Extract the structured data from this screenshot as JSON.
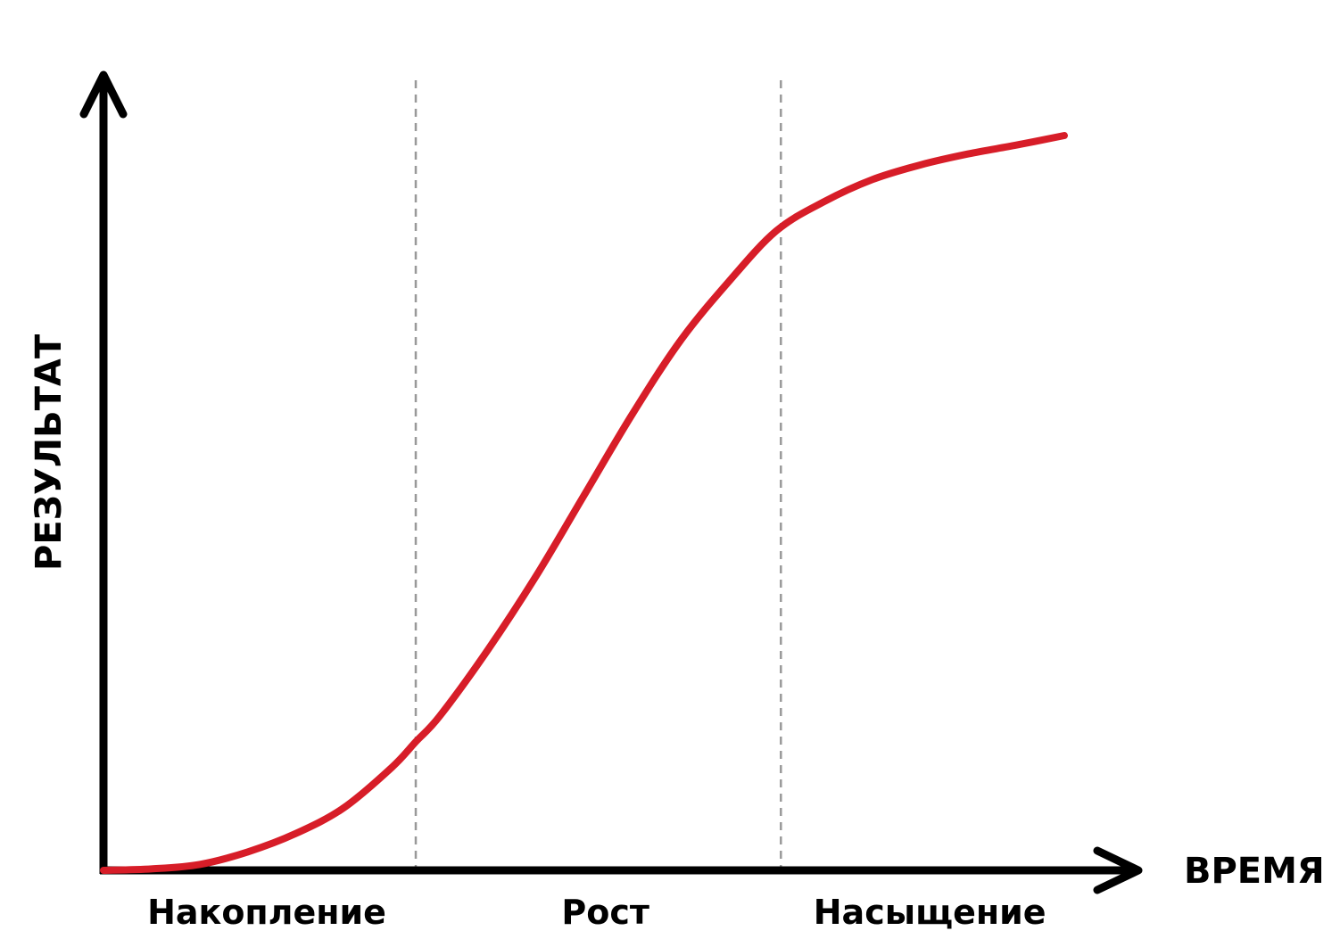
{
  "chart_data": {
    "type": "line",
    "title": "",
    "xlabel": "ВРЕМЯ",
    "ylabel": "РЕЗУЛЬТАТ",
    "grid": false,
    "legend": "none",
    "phases": [
      {
        "name": "Накопление",
        "x_start": 0,
        "x_end": 0.325
      },
      {
        "name": "Рост",
        "x_start": 0.325,
        "x_end": 0.705
      },
      {
        "name": "Насыщение",
        "x_start": 0.705,
        "x_end": 1.0
      }
    ],
    "series": [
      {
        "color": "#d71d28",
        "x": [
          0.0,
          0.05,
          0.1,
          0.15,
          0.2,
          0.25,
          0.3,
          0.325,
          0.35,
          0.4,
          0.45,
          0.5,
          0.55,
          0.6,
          0.65,
          0.7,
          0.75,
          0.8,
          0.85,
          0.9,
          0.95,
          1.0
        ],
        "y": [
          0.0,
          0.002,
          0.008,
          0.025,
          0.05,
          0.085,
          0.14,
          0.175,
          0.21,
          0.3,
          0.4,
          0.51,
          0.62,
          0.72,
          0.8,
          0.87,
          0.91,
          0.94,
          0.96,
          0.975,
          0.987,
          1.0
        ]
      }
    ],
    "xlim": [
      0,
      1
    ],
    "ylim": [
      0,
      1
    ],
    "colors": {
      "axes": "#000000",
      "curve": "#d71d28",
      "dividers": "#999999"
    }
  }
}
